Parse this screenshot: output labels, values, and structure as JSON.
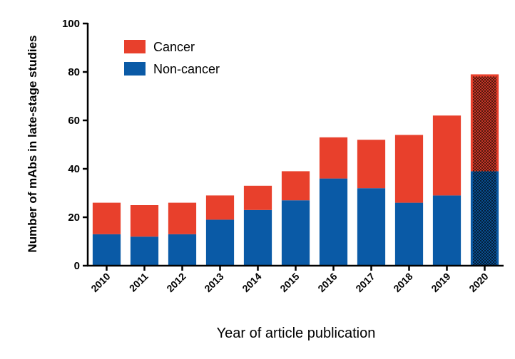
{
  "chart_data": {
    "type": "bar",
    "stacked": true,
    "categories": [
      "2010",
      "2011",
      "2012",
      "2013",
      "2014",
      "2015",
      "2016",
      "2017",
      "2018",
      "2019",
      "2020"
    ],
    "series": [
      {
        "name": "Non-cancer",
        "color": "#0a5aa6",
        "values": [
          13,
          12,
          13,
          19,
          23,
          27,
          36,
          32,
          26,
          29,
          39
        ]
      },
      {
        "name": "Cancer",
        "color": "#e8402c",
        "values": [
          13,
          13,
          13,
          10,
          10,
          12,
          17,
          20,
          28,
          33,
          40
        ]
      }
    ],
    "hatched_categories": [
      "2020"
    ],
    "xlabel": "Year of article publication",
    "ylabel": "Number of mAbs in late-stage studies",
    "ylim": [
      0,
      100
    ],
    "yticks": [
      "0",
      "20",
      "40",
      "60",
      "80",
      "100"
    ],
    "legend": {
      "position": "top-left",
      "order": [
        "Cancer",
        "Non-cancer"
      ]
    }
  }
}
